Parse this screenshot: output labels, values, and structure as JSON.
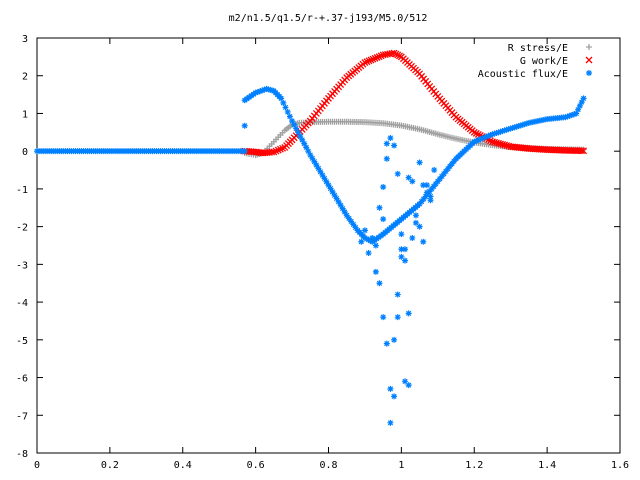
{
  "chart_data": {
    "type": "scatter",
    "title": "m2/n1.5/q1.5/r-+.37-j193/M5.0/512",
    "xlabel": "",
    "ylabel": "",
    "xlim": [
      0,
      1.6
    ],
    "ylim": [
      -8,
      3
    ],
    "xticks": [
      "0",
      "0.2",
      "0.4",
      "0.6",
      "0.8",
      "1",
      "1.2",
      "1.4",
      "1.6"
    ],
    "yticks": [
      "3",
      "2",
      "1",
      "0",
      "-1",
      "-2",
      "-3",
      "-4",
      "-5",
      "-6",
      "-7",
      "-8"
    ],
    "grid": false,
    "legend_position": "top-right",
    "series": [
      {
        "name": "R stress/E",
        "marker": "+",
        "color": "#a0a0a0",
        "x": [
          0.57,
          0.6,
          0.62,
          0.65,
          0.68,
          0.7,
          0.72,
          0.75,
          0.8,
          0.85,
          0.9,
          0.95,
          1.0,
          1.05,
          1.1,
          1.15,
          1.2,
          1.25,
          1.3,
          1.35,
          1.4,
          1.45,
          1.5
        ],
        "y": [
          -0.05,
          -0.1,
          -0.05,
          0.25,
          0.55,
          0.7,
          0.75,
          0.77,
          0.78,
          0.78,
          0.77,
          0.74,
          0.68,
          0.58,
          0.45,
          0.33,
          0.23,
          0.16,
          0.11,
          0.08,
          0.06,
          0.05,
          0.04
        ]
      },
      {
        "name": "G work/E",
        "marker": "x",
        "color": "#ff0000",
        "x": [
          0.57,
          0.6,
          0.62,
          0.65,
          0.68,
          0.7,
          0.75,
          0.8,
          0.85,
          0.9,
          0.95,
          0.98,
          1.0,
          1.05,
          1.1,
          1.15,
          1.2,
          1.25,
          1.3,
          1.35,
          1.4,
          1.45,
          1.5
        ],
        "y": [
          0.0,
          -0.02,
          -0.05,
          -0.02,
          0.1,
          0.3,
          0.8,
          1.4,
          1.95,
          2.35,
          2.55,
          2.6,
          2.5,
          2.05,
          1.45,
          0.9,
          0.5,
          0.25,
          0.12,
          0.07,
          0.04,
          0.02,
          0.01
        ]
      },
      {
        "name": "Acoustic flux/E",
        "marker": "*",
        "color": "#0080ff",
        "x": [
          0.0,
          0.1,
          0.2,
          0.3,
          0.4,
          0.5,
          0.57,
          0.57,
          0.6,
          0.63,
          0.65,
          0.67,
          0.7,
          0.75,
          0.8,
          0.85,
          0.88,
          0.9,
          0.92,
          0.95,
          1.0,
          1.05,
          1.1,
          1.15,
          1.2,
          1.25,
          1.3,
          1.35,
          1.4,
          1.45,
          1.48,
          1.5
        ],
        "y": [
          0.0,
          0.0,
          0.0,
          0.0,
          0.0,
          0.0,
          0.0,
          1.35,
          1.55,
          1.65,
          1.6,
          1.4,
          0.8,
          -0.1,
          -0.9,
          -1.7,
          -2.1,
          -2.3,
          -2.4,
          -2.2,
          -1.8,
          -1.4,
          -0.8,
          -0.2,
          0.25,
          0.45,
          0.6,
          0.75,
          0.85,
          0.9,
          1.0,
          1.4
        ]
      },
      {
        "name": "",
        "marker": "*",
        "color": "#0080ff",
        "x": [
          0.89,
          0.9,
          0.91,
          0.92,
          0.93,
          0.93,
          0.94,
          0.95,
          0.95,
          0.96,
          0.96,
          0.97,
          0.97,
          0.98,
          0.98,
          0.99,
          0.99,
          1.0,
          1.0,
          1.01,
          1.01,
          1.02,
          1.02,
          1.03,
          1.03,
          1.04,
          1.05,
          1.06,
          1.07,
          1.08,
          0.94,
          0.95,
          0.96,
          0.97,
          0.98,
          0.99,
          1.0,
          1.01,
          1.02,
          1.04,
          1.05,
          1.06,
          1.07,
          1.08,
          1.09
        ],
        "y": [
          -2.4,
          -2.1,
          -2.7,
          -2.3,
          -2.5,
          -3.2,
          -3.5,
          -0.95,
          -4.4,
          -0.2,
          -5.1,
          -6.3,
          -7.2,
          -6.5,
          -5.0,
          -3.8,
          -4.4,
          -2.8,
          -2.2,
          -2.6,
          -6.1,
          -6.2,
          -4.3,
          -2.3,
          -0.8,
          -1.7,
          -0.3,
          -2.4,
          -0.9,
          -1.2,
          -1.5,
          -1.8,
          0.2,
          0.35,
          0.15,
          -0.6,
          -2.6,
          -2.9,
          -0.7,
          -1.9,
          -2.0,
          -0.9,
          -1.1,
          -1.3,
          -0.5
        ]
      }
    ]
  }
}
